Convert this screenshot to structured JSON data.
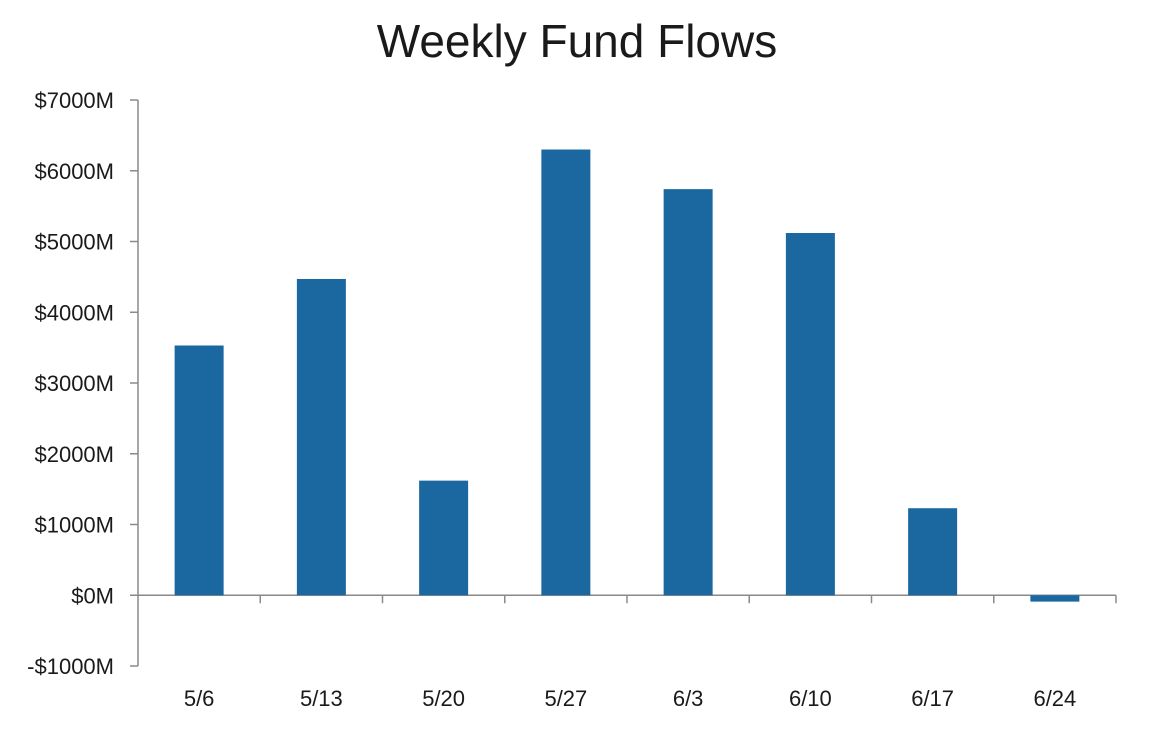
{
  "chart_data": {
    "type": "bar",
    "title": "Weekly Fund Flows",
    "xlabel": "",
    "ylabel": "",
    "categories": [
      "5/6",
      "5/13",
      "5/20",
      "5/27",
      "6/3",
      "6/10",
      "6/17",
      "6/24"
    ],
    "values": [
      3530,
      4470,
      1620,
      6300,
      5740,
      5120,
      1230,
      -90
    ],
    "ylim": [
      -1000,
      7000
    ],
    "yticks": [
      -1000,
      0,
      1000,
      2000,
      3000,
      4000,
      5000,
      6000,
      7000
    ],
    "ytick_labels": [
      "-$1000M",
      "$0M",
      "$1000M",
      "$2000M",
      "$3000M",
      "$4000M",
      "$5000M",
      "$6000M",
      "$7000M"
    ],
    "bar_color": "#1b67a0",
    "grid": false,
    "legend": "none"
  }
}
